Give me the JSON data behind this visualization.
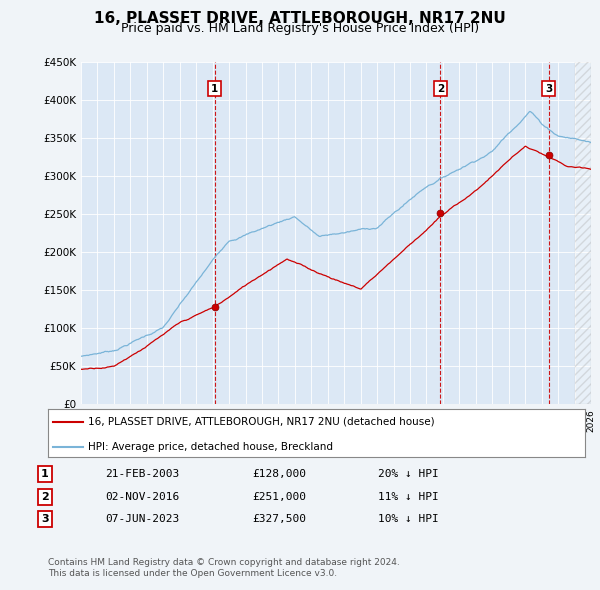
{
  "title": "16, PLASSET DRIVE, ATTLEBOROUGH, NR17 2NU",
  "subtitle": "Price paid vs. HM Land Registry's House Price Index (HPI)",
  "title_fontsize": 11,
  "subtitle_fontsize": 9,
  "hpi_color": "#7ab4d8",
  "price_color": "#cc0000",
  "vline_color": "#cc0000",
  "background_color": "#f0f4f8",
  "plot_bg_color": "#dce8f5",
  "sale1": {
    "date_num": 2003.13,
    "price": 128000,
    "label": "1",
    "date_str": "21-FEB-2003",
    "pct": "20%"
  },
  "sale2": {
    "date_num": 2016.84,
    "price": 251000,
    "label": "2",
    "date_str": "02-NOV-2016",
    "pct": "11%"
  },
  "sale3": {
    "date_num": 2023.44,
    "price": 327500,
    "label": "3",
    "date_str": "07-JUN-2023",
    "pct": "10%"
  },
  "legend_line1": "16, PLASSET DRIVE, ATTLEBOROUGH, NR17 2NU (detached house)",
  "legend_line2": "HPI: Average price, detached house, Breckland",
  "footer1": "Contains HM Land Registry data © Crown copyright and database right 2024.",
  "footer2": "This data is licensed under the Open Government Licence v3.0.",
  "xmin": 1995,
  "xmax": 2026,
  "ylim": [
    0,
    450000
  ],
  "yticks": [
    0,
    50000,
    100000,
    150000,
    200000,
    250000,
    300000,
    350000,
    400000,
    450000
  ],
  "ytick_labels": [
    "£0",
    "£50K",
    "£100K",
    "£150K",
    "£200K",
    "£250K",
    "£300K",
    "£350K",
    "£400K",
    "£450K"
  ]
}
